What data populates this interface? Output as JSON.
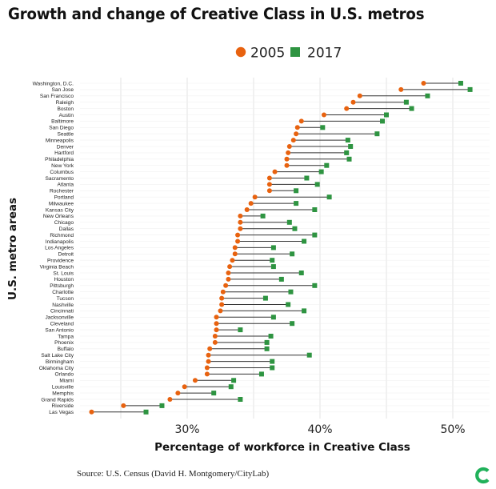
{
  "title": "Growth and change of Creative Class in U.S. metros",
  "source": "Source: U.S. Census (David H. Montgomery/CityLab)",
  "colors": {
    "y2005": "#e8620f",
    "y2017": "#2e9441",
    "connector": "#333333",
    "grid": "#e3e3e3"
  },
  "logo": {
    "icon": "citylab-logo-icon",
    "color": "#20b15a"
  },
  "chart_data": {
    "type": "dumbbell",
    "xlabel": "Percentage of workforce in Creative Class",
    "ylabel": "U.S. metro areas",
    "xlim": [
      21,
      52
    ],
    "xticks": [
      30,
      40,
      50
    ],
    "xtick_labels": [
      "30%",
      "40%",
      "50%"
    ],
    "grid": true,
    "legend": {
      "position": "top-center",
      "entries": [
        {
          "name": "2005",
          "marker": "circle",
          "color": "#e8620f"
        },
        {
          "name": "2017",
          "marker": "square",
          "color": "#2e9441"
        }
      ]
    },
    "categories": [
      "Washington, D.C.",
      "San Jose",
      "San Francisco",
      "Raleigh",
      "Boston",
      "Austin",
      "Baltimore",
      "San Diego",
      "Seattle",
      "Minneapolis",
      "Denver",
      "Hartford",
      "Philadelphia",
      "New York",
      "Columbus",
      "Sacramento",
      "Atlanta",
      "Rochester",
      "Portland",
      "Milwaukee",
      "Kansas City",
      "New Orleans",
      "Chicago",
      "Dallas",
      "Richmond",
      "Indianapolis",
      "Los Angeles",
      "Detroit",
      "Providence",
      "Virginia Beach",
      "St. Louis",
      "Houston",
      "Pittsburgh",
      "Charlotte",
      "Tucson",
      "Nashville",
      "Cincinnati",
      "Jacksonville",
      "Cleveland",
      "San Antonio",
      "Tampa",
      "Phoenix",
      "Buffalo",
      "Salt Lake City",
      "Birmingham",
      "Oklahoma City",
      "Orlando",
      "Miami",
      "Louisville",
      "Memphis",
      "Grand Rapids",
      "Riverside",
      "Las Vegas"
    ],
    "series": [
      {
        "name": "2005",
        "values": [
          47.8,
          46.1,
          43.0,
          42.5,
          42.0,
          40.3,
          38.6,
          38.3,
          38.2,
          38.0,
          37.7,
          37.6,
          37.5,
          37.5,
          36.6,
          36.2,
          36.2,
          36.2,
          35.1,
          34.8,
          34.5,
          34.0,
          34.0,
          34.0,
          33.8,
          33.8,
          33.6,
          33.6,
          33.4,
          33.2,
          33.1,
          33.1,
          32.9,
          32.7,
          32.6,
          32.6,
          32.5,
          32.2,
          32.2,
          32.2,
          32.1,
          32.1,
          31.7,
          31.6,
          31.6,
          31.5,
          31.5,
          30.6,
          29.8,
          29.3,
          28.7,
          25.2,
          22.8
        ]
      },
      {
        "name": "2017",
        "values": [
          50.6,
          51.3,
          48.1,
          46.5,
          46.9,
          45.0,
          44.7,
          40.2,
          44.3,
          42.1,
          42.3,
          42.0,
          42.2,
          40.5,
          40.1,
          39.0,
          39.8,
          38.2,
          40.7,
          38.2,
          39.6,
          35.7,
          37.7,
          38.1,
          39.6,
          38.8,
          36.5,
          37.9,
          36.4,
          36.5,
          38.6,
          37.1,
          39.6,
          37.8,
          35.9,
          37.6,
          38.8,
          36.5,
          37.9,
          34.0,
          36.3,
          36.0,
          36.0,
          39.2,
          36.4,
          36.4,
          35.6,
          33.5,
          33.3,
          32.0,
          34.0,
          28.1,
          26.9
        ]
      }
    ]
  }
}
